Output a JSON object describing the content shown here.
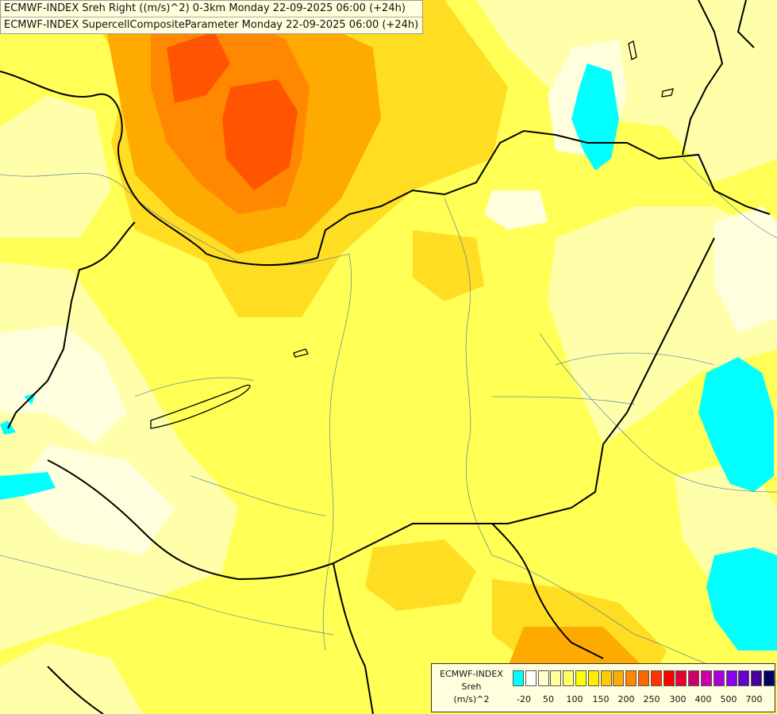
{
  "header": {
    "line1": "ECMWF-INDEX Sreh Right ((m/s)^2) 0-3km Monday 22-09-2025 06:00 (+24h)",
    "line2": "ECMWF-INDEX SupercellCompositeParameter Monday 22-09-2025 06:00 (+24h)"
  },
  "legend": {
    "title1": "ECMWF-INDEX",
    "title2": "Sreh",
    "units": "(m/s)^2",
    "colors": [
      "#00ffff",
      "#ffffff",
      "#ffffcc",
      "#ffff99",
      "#ffff66",
      "#ffff00",
      "#ffee00",
      "#ffcc00",
      "#ffaa00",
      "#ff8800",
      "#ff6600",
      "#ff3300",
      "#ff0000",
      "#e60033",
      "#cc0066",
      "#cc00aa",
      "#aa00dd",
      "#8800ee",
      "#6600cc",
      "#440099",
      "#000066"
    ],
    "labels": [
      "-20",
      "50",
      "100",
      "150",
      "200",
      "250",
      "300",
      "400",
      "500",
      "700"
    ]
  },
  "colors": {
    "cyan": "#00ffff",
    "pale": "#ffffcc",
    "light": "#ffff99",
    "yellow": "#ffff33",
    "gold": "#ffdd00",
    "orange": "#ff9900",
    "red": "#ff4400"
  }
}
